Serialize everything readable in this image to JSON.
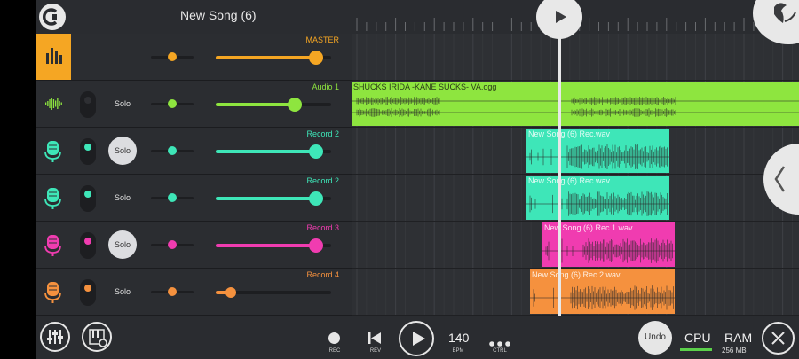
{
  "app": {
    "song_title": "New Song (6)"
  },
  "colors": {
    "master": "#f5a623",
    "audio": "#8ee53f",
    "record_teal": "#3ee6b8",
    "record_pink": "#f03cb0",
    "record_orange": "#f5913e",
    "panel": "#2b2d31",
    "background": "#2e3034"
  },
  "mixer": {
    "tracks": [
      {
        "name": "MASTER",
        "icon": "equalizer-icon",
        "solo_label": "",
        "solo_active": false,
        "volume": 0.9,
        "color": "#f5a623"
      },
      {
        "name": "Audio 1",
        "icon": "waveform-icon",
        "solo_label": "Solo",
        "solo_active": false,
        "volume": 0.71,
        "color": "#8ee53f"
      },
      {
        "name": "Record 2",
        "icon": "microphone-icon",
        "solo_label": "Solo",
        "solo_active": true,
        "volume": 0.9,
        "color": "#3ee6b8"
      },
      {
        "name": "Record 2",
        "icon": "microphone-icon",
        "solo_label": "Solo",
        "solo_active": false,
        "volume": 0.9,
        "color": "#3ee6b8"
      },
      {
        "name": "Record 3",
        "icon": "microphone-icon",
        "solo_label": "Solo",
        "solo_active": true,
        "volume": 0.9,
        "color": "#f03cb0"
      },
      {
        "name": "Record 4",
        "icon": "microphone-icon",
        "solo_label": "Solo",
        "solo_active": false,
        "volume": 0.15,
        "color": "#f5913e"
      }
    ]
  },
  "clips": [
    {
      "label": "SHUCKS IRIDA -KANE SUCKS- VA.ogg",
      "track": 1,
      "color": "#8ee53f"
    },
    {
      "label": "New Song (6) Rec.wav",
      "track": 2,
      "color": "#3ee6b8"
    },
    {
      "label": "New Song (6) Rec.wav",
      "track": 3,
      "color": "#3ee6b8"
    },
    {
      "label": "New Song (6) Rec 1.wav",
      "track": 4,
      "color": "#f03cb0"
    },
    {
      "label": "New Song (6) Rec 2.wav",
      "track": 5,
      "color": "#f5913e"
    }
  ],
  "transport": {
    "rec_label": "REC",
    "rev_label": "REV",
    "bpm_value": "140",
    "bpm_label": "BPM",
    "ctrl_label": "CTRL",
    "undo_label": "Undo",
    "cpu_label": "CPU",
    "ram_label": "RAM",
    "ram_value": "256 MB"
  }
}
